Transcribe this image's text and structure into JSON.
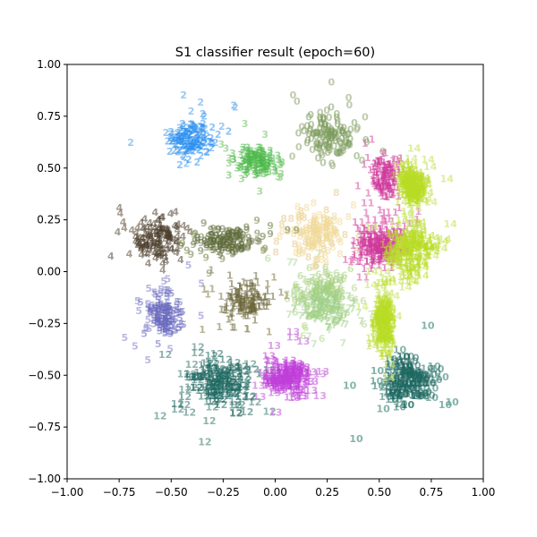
{
  "chart_data": {
    "type": "scatter",
    "title": "S1 classifier result (epoch=60)",
    "xlabel": "",
    "ylabel": "",
    "xlim": [
      -1.0,
      1.0
    ],
    "ylim": [
      -1.0,
      1.0
    ],
    "xticks": [
      "−1.00",
      "−0.75",
      "−0.50",
      "−0.25",
      "0.00",
      "0.25",
      "0.50",
      "0.75",
      "1.00"
    ],
    "yticks": [
      "−1.00",
      "−0.75",
      "−0.50",
      "−0.25",
      "0.00",
      "0.25",
      "0.50",
      "0.75",
      "1.00"
    ],
    "xtick_values": [
      -1.0,
      -0.75,
      -0.5,
      -0.25,
      0.0,
      0.25,
      0.5,
      0.75,
      1.0
    ],
    "ytick_values": [
      -1.0,
      -0.75,
      -0.5,
      -0.25,
      0.0,
      0.25,
      0.5,
      0.75,
      1.0
    ],
    "grid": false,
    "marker": "class label digits",
    "clusters": [
      {
        "label": "0",
        "center": [
          0.27,
          0.64
        ],
        "spread": [
          0.07,
          0.06
        ],
        "color": "#7e9c5e",
        "halo": "#aab890"
      },
      {
        "label": "1",
        "center": [
          0.53,
          0.45
        ],
        "spread": [
          0.04,
          0.07
        ],
        "color": "#d0389a",
        "halo": "#e07ab8"
      },
      {
        "label": "2",
        "center": [
          -0.4,
          0.62
        ],
        "spread": [
          0.06,
          0.05
        ],
        "color": "#2b8ff0",
        "halo": "#7ab6ee"
      },
      {
        "label": "3",
        "center": [
          -0.1,
          0.52
        ],
        "spread": [
          0.06,
          0.04
        ],
        "color": "#4cb94a",
        "halo": "#8fcf86"
      },
      {
        "label": "4",
        "center": [
          -0.57,
          0.14
        ],
        "spread": [
          0.07,
          0.06
        ],
        "color": "#4a3c2a",
        "halo": "#857a68"
      },
      {
        "label": "5",
        "center": [
          -0.53,
          -0.22
        ],
        "spread": [
          0.05,
          0.06
        ],
        "color": "#6a6ac0",
        "halo": "#a0a0d8"
      },
      {
        "label": "6",
        "center": [
          0.23,
          -0.13
        ],
        "spread": [
          0.07,
          0.07
        ],
        "color": "#a6d07c",
        "halo": "#c6e0a6"
      },
      {
        "label": "7",
        "center": [
          0.24,
          -0.18
        ],
        "spread": [
          0.07,
          0.06
        ],
        "color": "#9ed08a",
        "halo": "#c4e2b6"
      },
      {
        "label": "8",
        "center": [
          0.2,
          0.17
        ],
        "spread": [
          0.07,
          0.07
        ],
        "color": "#f0d898",
        "halo": "#ecd5a6"
      },
      {
        "label": "9",
        "center": [
          -0.23,
          0.13
        ],
        "spread": [
          0.08,
          0.04
        ],
        "color": "#5c6a38",
        "halo": "#93a070"
      },
      {
        "label": "10",
        "center": [
          0.64,
          -0.54
        ],
        "spread": [
          0.06,
          0.06
        ],
        "color": "#1e6860",
        "halo": "#5a9a8e"
      },
      {
        "label": "11",
        "center": [
          0.51,
          0.11
        ],
        "spread": [
          0.06,
          0.05
        ],
        "color": "#d0389a",
        "halo": "#e07ab8"
      },
      {
        "label": "12",
        "center": [
          -0.27,
          -0.55
        ],
        "spread": [
          0.09,
          0.07
        ],
        "color": "#1e6860",
        "halo": "#6a9a92"
      },
      {
        "label": "13",
        "center": [
          0.06,
          -0.52
        ],
        "spread": [
          0.06,
          0.05
        ],
        "color": "#c03ed8",
        "halo": "#d080e0"
      },
      {
        "label": "14",
        "center": [
          0.65,
          0.1
        ],
        "spread": [
          0.06,
          0.07
        ],
        "color": "#b8dc24",
        "halo": "#d2e87c"
      },
      {
        "label": "1",
        "center": [
          -0.14,
          -0.16
        ],
        "spread": [
          0.06,
          0.06
        ],
        "color": "#6a6438",
        "halo": "#a09a72"
      },
      {
        "label": "14",
        "center": [
          0.66,
          0.4
        ],
        "spread": [
          0.03,
          0.05
        ],
        "color": "#b8dc24",
        "halo": "#d2e87c"
      },
      {
        "label": "14",
        "center": [
          0.52,
          -0.25
        ],
        "spread": [
          0.02,
          0.09
        ],
        "color": "#b8dc24",
        "halo": "#d2e87c"
      }
    ]
  }
}
